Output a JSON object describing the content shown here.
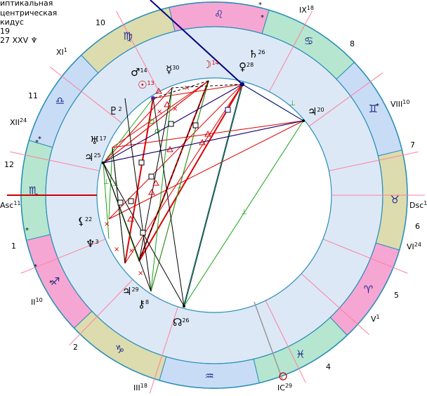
{
  "info": {
    "line1": "иптикальная",
    "line2": "центрическая",
    "line3": "кидус",
    "line4": "19",
    "line5": "27 XXV ♆"
  },
  "colors": {
    "background": "#ffffff",
    "wheel_fill": "#dde8f6",
    "sign_pink": "#f6a6d3",
    "sign_green": "#b6e6cf",
    "sign_blue": "#c9dcf6",
    "sign_khaki": "#dcdcaf",
    "ring_border": "#2a8fb8",
    "cusp_line": "#ff7fa0",
    "axis": "#cc0000",
    "aspect_red": "#dd0000",
    "aspect_green": "#19a319",
    "aspect_blue": "#000080",
    "aspect_black": "#000000"
  },
  "signs": [
    {
      "glyph": "♌",
      "color": "pink"
    },
    {
      "glyph": "♋",
      "color": "green"
    },
    {
      "glyph": "♊",
      "color": "blue"
    },
    {
      "glyph": "♉",
      "color": "khaki"
    },
    {
      "glyph": "♈",
      "color": "pink"
    },
    {
      "glyph": "♓",
      "color": "green"
    },
    {
      "glyph": "♒",
      "color": "blue"
    },
    {
      "glyph": "♑",
      "color": "khaki"
    },
    {
      "glyph": "♐",
      "color": "pink"
    },
    {
      "glyph": "♏",
      "color": "green"
    },
    {
      "glyph": "♎",
      "color": "blue"
    },
    {
      "glyph": "♍",
      "color": "khaki"
    }
  ],
  "house_labels": [
    {
      "text": "IX",
      "sup": "18"
    },
    {
      "text": "8",
      "sup": ""
    },
    {
      "text": "VIII",
      "sup": "10"
    },
    {
      "text": "7",
      "sup": ""
    },
    {
      "text": "Dsc",
      "sup": "11"
    },
    {
      "text": "6",
      "sup": ""
    },
    {
      "text": "VI",
      "sup": "24"
    },
    {
      "text": "5",
      "sup": ""
    },
    {
      "text": "V",
      "sup": "1"
    },
    {
      "text": "4",
      "sup": ""
    },
    {
      "text": "IC",
      "sup": "29"
    },
    {
      "text": "III",
      "sup": "18"
    },
    {
      "text": "2",
      "sup": ""
    },
    {
      "text": "II",
      "sup": "10"
    },
    {
      "text": "1",
      "sup": ""
    },
    {
      "text": "Asc",
      "sup": "11"
    },
    {
      "text": "12",
      "sup": ""
    },
    {
      "text": "XII",
      "sup": "24"
    },
    {
      "text": "11",
      "sup": ""
    },
    {
      "text": "XI",
      "sup": "1"
    },
    {
      "text": "10",
      "sup": ""
    }
  ],
  "planets": [
    {
      "glyph": "☽",
      "deg": "14",
      "color": "#cc0000"
    },
    {
      "glyph": "☿",
      "deg": "30",
      "color": "#000000"
    },
    {
      "glyph": "♂",
      "deg": "14",
      "color": "#000000"
    },
    {
      "glyph": "☉",
      "deg": "13",
      "color": "#cc0000"
    },
    {
      "glyph": "♄",
      "deg": "26",
      "color": "#000000"
    },
    {
      "glyph": "♀",
      "deg": "28",
      "color": "#000000"
    },
    {
      "glyph": "♇",
      "deg": "2",
      "color": "#000000"
    },
    {
      "glyph": "♅",
      "deg": "17",
      "color": "#000000"
    },
    {
      "glyph": "♃",
      "deg": "25",
      "color": "#000000"
    },
    {
      "glyph": "♃",
      "deg": "20",
      "color": "#000000"
    },
    {
      "glyph": "⚸",
      "deg": "22",
      "color": "#000000"
    },
    {
      "glyph": "♆",
      "deg": "3",
      "color": "#000000"
    },
    {
      "glyph": "♃",
      "deg": "29",
      "color": "#000000"
    },
    {
      "glyph": "⚷",
      "deg": "8",
      "color": "#000000"
    },
    {
      "glyph": "☊",
      "deg": "26",
      "color": "#000000"
    }
  ]
}
